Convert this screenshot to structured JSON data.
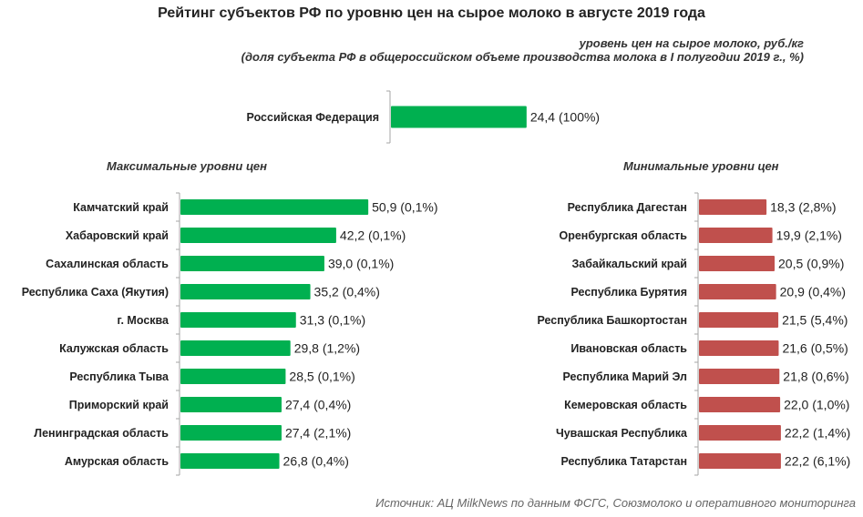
{
  "header": {
    "title": "Рейтинг субъектов РФ по уровню цен на сырое молоко в августе 2019 года",
    "subtitle_1": "уровень цен на сырое молоко, руб./кг",
    "subtitle_2": "(доля субъекта РФ в общероссийском объеме производства молока в I полугодии 2019 г., %)"
  },
  "source": "Источник:  АЦ MilkNews по данным ФСГС, Союзмолоко и оперативного мониторинга",
  "colors": {
    "green": "#00b050",
    "red": "#c0504d",
    "axis": "#a6a6a6"
  },
  "chart_data": [
    {
      "type": "bar",
      "orientation": "horizontal",
      "title": "",
      "categories": [
        "Российская Федерация"
      ],
      "values": [
        24.4
      ],
      "data_labels": [
        "24,4 (100%)"
      ]
    },
    {
      "type": "bar",
      "orientation": "horizontal",
      "title": "Максимальные уровни цен",
      "categories": [
        "Камчатский край",
        "Хабаровский край",
        "Сахалинская область",
        "Республика Саха (Якутия)",
        "г. Москва",
        "Калужская область",
        "Республика Тыва",
        "Приморский край",
        "Ленинградская область",
        "Амурская область"
      ],
      "values": [
        50.9,
        42.2,
        39.0,
        35.2,
        31.3,
        29.8,
        28.5,
        27.4,
        27.4,
        26.8
      ],
      "data_labels": [
        "50,9 (0,1%)",
        "42,2 (0,1%)",
        "39,0 (0,1%)",
        "35,2 (0,4%)",
        "31,3 (0,1%)",
        "29,8 (1,2%)",
        "28,5 (0,1%)",
        "27,4 (0,4%)",
        "27,4 (2,1%)",
        "26,8 (0,4%)"
      ]
    },
    {
      "type": "bar",
      "orientation": "horizontal",
      "title": "Минимальные уровни цен",
      "categories": [
        "Республика Дагестан",
        "Оренбургская область",
        "Забайкальский край",
        "Республика Бурятия",
        "Республика Башкортостан",
        "Ивановская область",
        "Республика Марий Эл",
        "Кемеровская область",
        "Чувашская Республика",
        "Республика Татарстан"
      ],
      "values": [
        18.3,
        19.9,
        20.5,
        20.9,
        21.5,
        21.6,
        21.8,
        22.0,
        22.2,
        22.2
      ],
      "data_labels": [
        "18,3 (2,8%)",
        "19,9 (2,1%)",
        "20,5 (0,9%)",
        "20,9 (0,4%)",
        "21,5 (5,4%)",
        "21,6 (0,5%)",
        "21,8 (0,6%)",
        "22,0 (1,0%)",
        "22,2 (1,4%)",
        "22,2 (6,1%)"
      ]
    }
  ]
}
